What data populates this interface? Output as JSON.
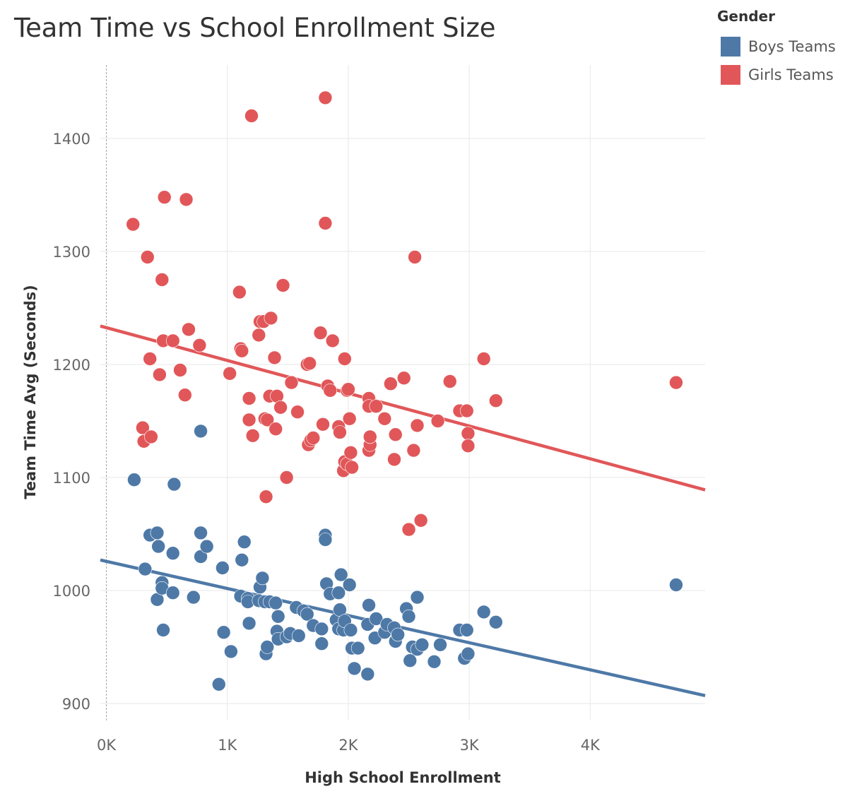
{
  "chart_data": {
    "type": "scatter",
    "title": "Team Time vs School Enrollment Size",
    "xlabel": "High School Enrollment",
    "ylabel": "Team Time Avg (Seconds)",
    "xlim": [
      -50,
      4950
    ],
    "ylim": [
      885,
      1465
    ],
    "x_ticks": [
      0,
      1000,
      2000,
      3000,
      4000
    ],
    "x_tick_labels": [
      "0K",
      "1K",
      "2K",
      "3K",
      "4K"
    ],
    "y_ticks": [
      900,
      1000,
      1100,
      1200,
      1300,
      1400
    ],
    "y_tick_labels": [
      "900",
      "1000",
      "1100",
      "1200",
      "1300",
      "1400"
    ],
    "grid": true,
    "legend_position": "top-right",
    "legend_title": "Gender",
    "series": [
      {
        "name": "Boys Teams",
        "color": "#4e79a7",
        "trendline": {
          "x": [
            -50,
            4950
          ],
          "y": [
            1027,
            907
          ]
        },
        "points": [
          [
            230,
            1098
          ],
          [
            320,
            1019
          ],
          [
            360,
            1049
          ],
          [
            420,
            1051
          ],
          [
            430,
            1039
          ],
          [
            420,
            992
          ],
          [
            460,
            1007
          ],
          [
            460,
            1002
          ],
          [
            470,
            965
          ],
          [
            550,
            1033
          ],
          [
            550,
            998
          ],
          [
            560,
            1094
          ],
          [
            720,
            994
          ],
          [
            780,
            1051
          ],
          [
            780,
            1141
          ],
          [
            780,
            1030
          ],
          [
            830,
            1039
          ],
          [
            930,
            917
          ],
          [
            960,
            1020
          ],
          [
            970,
            963
          ],
          [
            1030,
            946
          ],
          [
            1110,
            995
          ],
          [
            1120,
            1027
          ],
          [
            1140,
            1043
          ],
          [
            1170,
            993
          ],
          [
            1170,
            990
          ],
          [
            1180,
            971
          ],
          [
            1260,
            991
          ],
          [
            1270,
            1003
          ],
          [
            1290,
            1011
          ],
          [
            1310,
            990
          ],
          [
            1320,
            944
          ],
          [
            1330,
            950
          ],
          [
            1350,
            990
          ],
          [
            1400,
            989
          ],
          [
            1410,
            964
          ],
          [
            1420,
            977
          ],
          [
            1420,
            957
          ],
          [
            1490,
            959
          ],
          [
            1520,
            962
          ],
          [
            1570,
            985
          ],
          [
            1590,
            960
          ],
          [
            1630,
            982
          ],
          [
            1660,
            979
          ],
          [
            1710,
            969
          ],
          [
            1780,
            953
          ],
          [
            1780,
            966
          ],
          [
            1810,
            1049
          ],
          [
            1810,
            1045
          ],
          [
            1820,
            1006
          ],
          [
            1850,
            997
          ],
          [
            1900,
            974
          ],
          [
            1920,
            998
          ],
          [
            1920,
            966
          ],
          [
            1930,
            983
          ],
          [
            1940,
            1014
          ],
          [
            1960,
            965
          ],
          [
            1970,
            973
          ],
          [
            2010,
            1005
          ],
          [
            2020,
            965
          ],
          [
            2030,
            949
          ],
          [
            2050,
            931
          ],
          [
            2080,
            949
          ],
          [
            2160,
            926
          ],
          [
            2160,
            970
          ],
          [
            2170,
            987
          ],
          [
            2220,
            958
          ],
          [
            2230,
            975
          ],
          [
            2300,
            963
          ],
          [
            2320,
            970
          ],
          [
            2380,
            967
          ],
          [
            2390,
            955
          ],
          [
            2410,
            961
          ],
          [
            2480,
            984
          ],
          [
            2500,
            977
          ],
          [
            2510,
            938
          ],
          [
            2530,
            950
          ],
          [
            2570,
            948
          ],
          [
            2570,
            994
          ],
          [
            2610,
            952
          ],
          [
            2710,
            937
          ],
          [
            2760,
            952
          ],
          [
            2920,
            965
          ],
          [
            2960,
            940
          ],
          [
            2980,
            965
          ],
          [
            2990,
            944
          ],
          [
            3120,
            981
          ],
          [
            3220,
            972
          ],
          [
            4710,
            1005
          ]
        ]
      },
      {
        "name": "Girls Teams",
        "color": "#e15759",
        "trendline": {
          "x": [
            -50,
            4950
          ],
          "y": [
            1234,
            1089
          ]
        },
        "points": [
          [
            220,
            1324
          ],
          [
            300,
            1144
          ],
          [
            310,
            1132
          ],
          [
            340,
            1295
          ],
          [
            360,
            1205
          ],
          [
            370,
            1136
          ],
          [
            440,
            1191
          ],
          [
            460,
            1275
          ],
          [
            470,
            1221
          ],
          [
            480,
            1348
          ],
          [
            550,
            1221
          ],
          [
            610,
            1195
          ],
          [
            650,
            1173
          ],
          [
            660,
            1346
          ],
          [
            680,
            1231
          ],
          [
            770,
            1217
          ],
          [
            1020,
            1192
          ],
          [
            1100,
            1264
          ],
          [
            1110,
            1214
          ],
          [
            1120,
            1212
          ],
          [
            1180,
            1170
          ],
          [
            1180,
            1151
          ],
          [
            1200,
            1420
          ],
          [
            1210,
            1137
          ],
          [
            1260,
            1226
          ],
          [
            1270,
            1238
          ],
          [
            1300,
            1238
          ],
          [
            1310,
            1152
          ],
          [
            1320,
            1083
          ],
          [
            1330,
            1151
          ],
          [
            1350,
            1172
          ],
          [
            1360,
            1241
          ],
          [
            1390,
            1206
          ],
          [
            1400,
            1143
          ],
          [
            1410,
            1172
          ],
          [
            1440,
            1162
          ],
          [
            1460,
            1270
          ],
          [
            1490,
            1100
          ],
          [
            1530,
            1184
          ],
          [
            1580,
            1158
          ],
          [
            1660,
            1200
          ],
          [
            1670,
            1129
          ],
          [
            1680,
            1201
          ],
          [
            1690,
            1133
          ],
          [
            1710,
            1135
          ],
          [
            1770,
            1228
          ],
          [
            1790,
            1147
          ],
          [
            1810,
            1325
          ],
          [
            1810,
            1436
          ],
          [
            1830,
            1181
          ],
          [
            1850,
            1177
          ],
          [
            1870,
            1221
          ],
          [
            1920,
            1145
          ],
          [
            1930,
            1140
          ],
          [
            1960,
            1106
          ],
          [
            1970,
            1114
          ],
          [
            1970,
            1205
          ],
          [
            1990,
            1112
          ],
          [
            1990,
            1177
          ],
          [
            2000,
            1178
          ],
          [
            2010,
            1152
          ],
          [
            2020,
            1122
          ],
          [
            2030,
            1109
          ],
          [
            2170,
            1170
          ],
          [
            2170,
            1163
          ],
          [
            2170,
            1124
          ],
          [
            2180,
            1129
          ],
          [
            2180,
            1136
          ],
          [
            2230,
            1163
          ],
          [
            2300,
            1152
          ],
          [
            2350,
            1183
          ],
          [
            2380,
            1116
          ],
          [
            2390,
            1138
          ],
          [
            2460,
            1188
          ],
          [
            2500,
            1054
          ],
          [
            2540,
            1124
          ],
          [
            2550,
            1295
          ],
          [
            2570,
            1146
          ],
          [
            2600,
            1062
          ],
          [
            2740,
            1150
          ],
          [
            2840,
            1185
          ],
          [
            2920,
            1159
          ],
          [
            2980,
            1159
          ],
          [
            2990,
            1139
          ],
          [
            2990,
            1128
          ],
          [
            3120,
            1205
          ],
          [
            3220,
            1168
          ],
          [
            4710,
            1184
          ]
        ]
      }
    ]
  }
}
